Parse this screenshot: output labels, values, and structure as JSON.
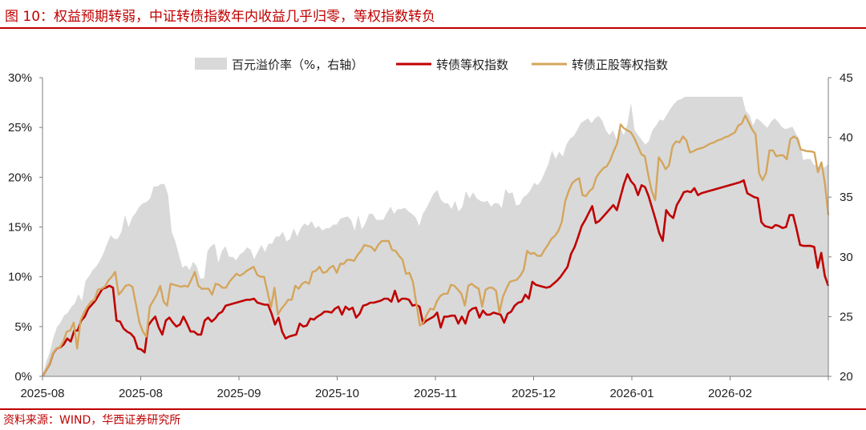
{
  "header": {
    "title": "图 10：权益预期转弱，中证转债指数年内收益几乎归零，等权指数转负"
  },
  "footer": {
    "source": "资料来源：WIND，华西证券研究所"
  },
  "chart_data": {
    "type": "line",
    "title": "图 10：权益预期转弱，中证转债指数年内收益几乎归零，等权指数转负",
    "x_tick_labels": [
      "2025-08",
      "2025-08",
      "2025-09",
      "2025-10",
      "2025-11",
      "2025-12",
      "2026-01",
      "2026-02"
    ],
    "left_axis": {
      "ylim": [
        0,
        30
      ],
      "ticks": [
        0,
        5,
        10,
        15,
        20,
        25,
        30
      ],
      "tick_labels": [
        "0%",
        "5%",
        "10%",
        "15%",
        "20%",
        "25%",
        "30%"
      ]
    },
    "right_axis": {
      "ylim": [
        20,
        45
      ],
      "ticks": [
        20,
        25,
        30,
        35,
        40,
        45
      ],
      "tick_labels": [
        "20",
        "25",
        "30",
        "35",
        "40",
        "45"
      ]
    },
    "legend_position": "top",
    "grid": false,
    "series": [
      {
        "name": "百元溢价率（%，右轴）",
        "type": "area",
        "color": "#d9d9d9",
        "values": [
          20.0,
          21.2,
          22.0,
          23.2,
          24.1,
          24.5,
          25.1,
          25.3,
          25.8,
          26.1,
          26.9,
          26.3,
          28.0,
          28.4,
          28.9,
          29.2,
          29.7,
          30.3,
          31.1,
          31.8,
          31.5,
          31.5,
          32.1,
          33.5,
          32.5,
          33.3,
          33.7,
          34.2,
          34.5,
          34.6,
          34.9,
          35.9,
          35.9,
          36.1,
          36.1,
          35.2,
          32.1,
          31.3,
          30.2,
          29.1,
          29.3,
          28.9,
          29.6,
          29.2,
          28.2,
          28.2,
          30.5,
          30.9,
          31.1,
          29.5,
          30.5,
          30.9,
          30.0,
          30.0,
          29.7,
          30.2,
          30.4,
          30.8,
          30.6,
          29.8,
          30.4,
          31.0,
          30.4,
          31.1,
          31.1,
          31.7,
          31.7,
          32.1,
          31.3,
          31.5,
          32.4,
          31.7,
          32.4,
          32.8,
          32.6,
          33.0,
          32.4,
          32.6,
          32.2,
          32.4,
          32.4,
          32.7,
          32.7,
          33.2,
          33.3,
          33.4,
          33.1,
          32.2,
          33.5,
          32.3,
          32.8,
          33.6,
          33.6,
          33.1,
          33.1,
          33.1,
          33.7,
          34.2,
          33.6,
          34.0,
          34.0,
          34.1,
          33.8,
          33.6,
          33.3,
          32.6,
          33.6,
          34.1,
          34.7,
          35.3,
          35.6,
          34.8,
          34.5,
          34.5,
          34.0,
          34.7,
          33.8,
          34.2,
          35.5,
          34.9,
          35.4,
          34.9,
          34.7,
          34.6,
          34.7,
          34.2,
          34.5,
          34.5,
          34.1,
          35.7,
          35.3,
          35.4,
          34.3,
          34.4,
          35.0,
          35.2,
          35.6,
          36.2,
          36.0,
          36.4,
          37.1,
          37.8,
          38.9,
          38.2,
          38.8,
          38.4,
          39.4,
          39.9,
          40.1,
          40.6,
          41.2,
          41.4,
          41.6,
          41.2,
          41.6,
          41.8,
          41.4,
          40.6,
          40.2,
          40.6,
          39.8,
          40.8,
          40.2,
          41.1,
          42.9,
          40.6,
          40.2,
          39.8,
          39.4,
          39.7,
          40.6,
          41.0,
          41.5,
          41.4,
          41.9,
          42.4,
          42.8,
          43.1,
          43.2,
          43.4,
          43.4,
          43.4,
          43.4,
          43.4,
          43.4,
          43.4,
          43.4,
          43.4,
          43.4,
          43.4,
          43.4,
          43.4,
          43.4,
          43.4,
          43.4,
          43.4,
          42.2,
          41.9,
          41.0,
          41.6,
          41.4,
          41.1,
          40.8,
          41.3,
          41.6,
          41.3,
          40.9,
          40.7,
          40.8,
          40.9,
          40.3,
          39.8,
          38.1,
          38.2,
          38.2,
          37.7,
          37.6,
          37.5,
          37.5,
          37.8
        ]
      },
      {
        "name": "转债等权指数",
        "type": "line",
        "axis": "left",
        "color": "#c00000",
        "values": [
          0.0,
          0.6,
          1.2,
          2.3,
          2.8,
          2.9,
          3.2,
          3.8,
          3.5,
          4.6,
          4.6,
          5.6,
          6.0,
          6.8,
          7.2,
          7.6,
          8.2,
          8.8,
          8.9,
          9.1,
          8.9,
          5.6,
          5.5,
          4.8,
          4.5,
          4.3,
          3.9,
          2.8,
          2.7,
          2.4,
          5.1,
          5.6,
          6.0,
          4.9,
          4.2,
          5.6,
          5.9,
          5.4,
          5.0,
          5.2,
          6.0,
          5.3,
          4.5,
          4.5,
          4.2,
          4.2,
          5.6,
          5.9,
          5.5,
          5.8,
          6.3,
          6.5,
          7.1,
          7.2,
          7.3,
          7.4,
          7.5,
          7.6,
          7.7,
          7.7,
          7.8,
          7.4,
          7.3,
          7.2,
          7.2,
          6.3,
          5.2,
          5.9,
          4.5,
          3.8,
          4.0,
          4.1,
          4.2,
          5.3,
          5.0,
          5.1,
          5.8,
          5.7,
          6.0,
          6.2,
          6.5,
          6.5,
          6.4,
          6.8,
          7.0,
          6.2,
          7.0,
          6.7,
          6.9,
          5.9,
          6.3,
          7.1,
          7.2,
          7.4,
          7.4,
          7.5,
          7.6,
          7.8,
          7.8,
          7.5,
          8.6,
          7.5,
          7.8,
          7.8,
          7.7,
          7.1,
          7.2,
          7.0,
          5.3,
          5.6,
          5.8,
          6.0,
          6.4,
          4.9,
          6.0,
          6.0,
          6.1,
          6.1,
          5.3,
          6.0,
          5.3,
          6.5,
          6.8,
          6.9,
          5.9,
          6.6,
          6.2,
          6.2,
          6.4,
          6.3,
          6.2,
          5.4,
          6.3,
          6.5,
          7.1,
          7.4,
          7.5,
          8.2,
          7.8,
          9.5,
          9.2,
          9.1,
          9.0,
          8.9,
          9.0,
          9.3,
          9.6,
          10.0,
          10.5,
          11.0,
          12.3,
          13.0,
          14.0,
          15.1,
          15.7,
          16.4,
          17.1,
          15.4,
          15.6,
          16.0,
          16.4,
          16.8,
          17.2,
          16.7,
          18.0,
          19.3,
          20.3,
          19.6,
          19.2,
          18.2,
          19.2,
          19.0,
          18.1,
          16.9,
          15.7,
          14.4,
          13.6,
          16.7,
          16.2,
          15.9,
          17.2,
          17.8,
          18.5,
          18.6,
          18.5,
          18.9,
          18.2,
          18.4,
          18.5,
          18.6,
          18.7,
          18.8,
          18.9,
          19.0,
          19.1,
          19.2,
          19.3,
          19.4,
          19.5,
          19.7,
          18.4,
          18.2,
          18.0,
          17.9,
          15.5,
          15.1,
          15.0,
          14.9,
          15.2,
          15.1,
          14.9,
          15.0,
          16.2,
          16.2,
          14.8,
          13.2,
          13.1,
          13.1,
          13.1,
          13.0,
          10.9,
          12.4,
          10.1,
          9.1
        ]
      },
      {
        "name": "转债正股等权指数",
        "type": "line",
        "axis": "left",
        "color": "#d4a55c",
        "values": [
          0.0,
          0.6,
          1.2,
          2.3,
          2.8,
          2.9,
          3.5,
          4.5,
          4.6,
          5.4,
          2.8,
          5.6,
          6.4,
          7.0,
          7.5,
          7.7,
          8.7,
          8.8,
          9.0,
          9.6,
          10.0,
          10.5,
          8.2,
          8.6,
          9.1,
          9.2,
          9.0,
          7.2,
          5.4,
          4.5,
          4.0,
          7.0,
          7.6,
          8.2,
          9.1,
          7.5,
          7.1,
          9.3,
          9.2,
          9.1,
          9.0,
          9.1,
          9.0,
          9.7,
          10.5,
          9.1,
          8.8,
          8.8,
          8.8,
          8.2,
          9.3,
          9.2,
          8.9,
          8.9,
          9.5,
          9.9,
          10.3,
          10.1,
          10.3,
          10.6,
          10.8,
          11.0,
          10.2,
          10.0,
          10.0,
          8.5,
          6.9,
          8.9,
          6.2,
          6.8,
          7.2,
          7.7,
          7.7,
          9.1,
          8.8,
          9.3,
          9.5,
          9.3,
          10.5,
          10.6,
          11.0,
          10.4,
          10.5,
          10.9,
          11.1,
          10.4,
          11.3,
          11.3,
          11.7,
          11.7,
          11.6,
          12.2,
          12.6,
          13.2,
          13.1,
          13.0,
          12.6,
          13.2,
          13.6,
          13.6,
          13.6,
          12.7,
          12.6,
          12.1,
          11.7,
          10.3,
          10.4,
          9.5,
          7.3,
          5.1,
          5.4,
          6.2,
          6.8,
          6.7,
          7.6,
          8.1,
          8.3,
          8.3,
          9.2,
          9.1,
          8.7,
          8.3,
          7.1,
          9.1,
          9.3,
          9.0,
          8.8,
          7.0,
          8.7,
          8.9,
          8.9,
          8.6,
          6.4,
          8.0,
          8.8,
          9.5,
          9.6,
          9.7,
          10.1,
          10.7,
          12.6,
          12.3,
          12.4,
          12.1,
          12.1,
          12.7,
          13.2,
          13.8,
          14.1,
          14.6,
          15.5,
          17.6,
          18.6,
          19.4,
          19.7,
          19.9,
          18.2,
          18.1,
          18.6,
          18.9,
          20.0,
          20.5,
          20.9,
          21.1,
          21.7,
          22.6,
          23.4,
          25.3,
          24.9,
          24.7,
          24.5,
          23.9,
          23.1,
          22.3,
          22.1,
          20.2,
          18.6,
          17.7,
          22.0,
          21.5,
          20.8,
          21.2,
          23.1,
          23.6,
          23.5,
          24.1,
          23.7,
          22.5,
          22.6,
          22.8,
          22.9,
          23.0,
          23.2,
          23.4,
          23.5,
          23.7,
          23.8,
          24.0,
          24.1,
          24.3,
          24.5,
          25.2,
          25.4,
          26.2,
          25.5,
          24.8,
          24.3,
          20.4,
          19.7,
          20.4,
          22.7,
          22.7,
          22.1,
          22.2,
          22.2,
          21.8,
          23.8,
          24.1,
          23.9,
          22.8,
          22.7,
          22.6,
          22.6,
          22.5,
          20.5,
          21.5,
          19.4,
          16.2
        ]
      }
    ]
  }
}
